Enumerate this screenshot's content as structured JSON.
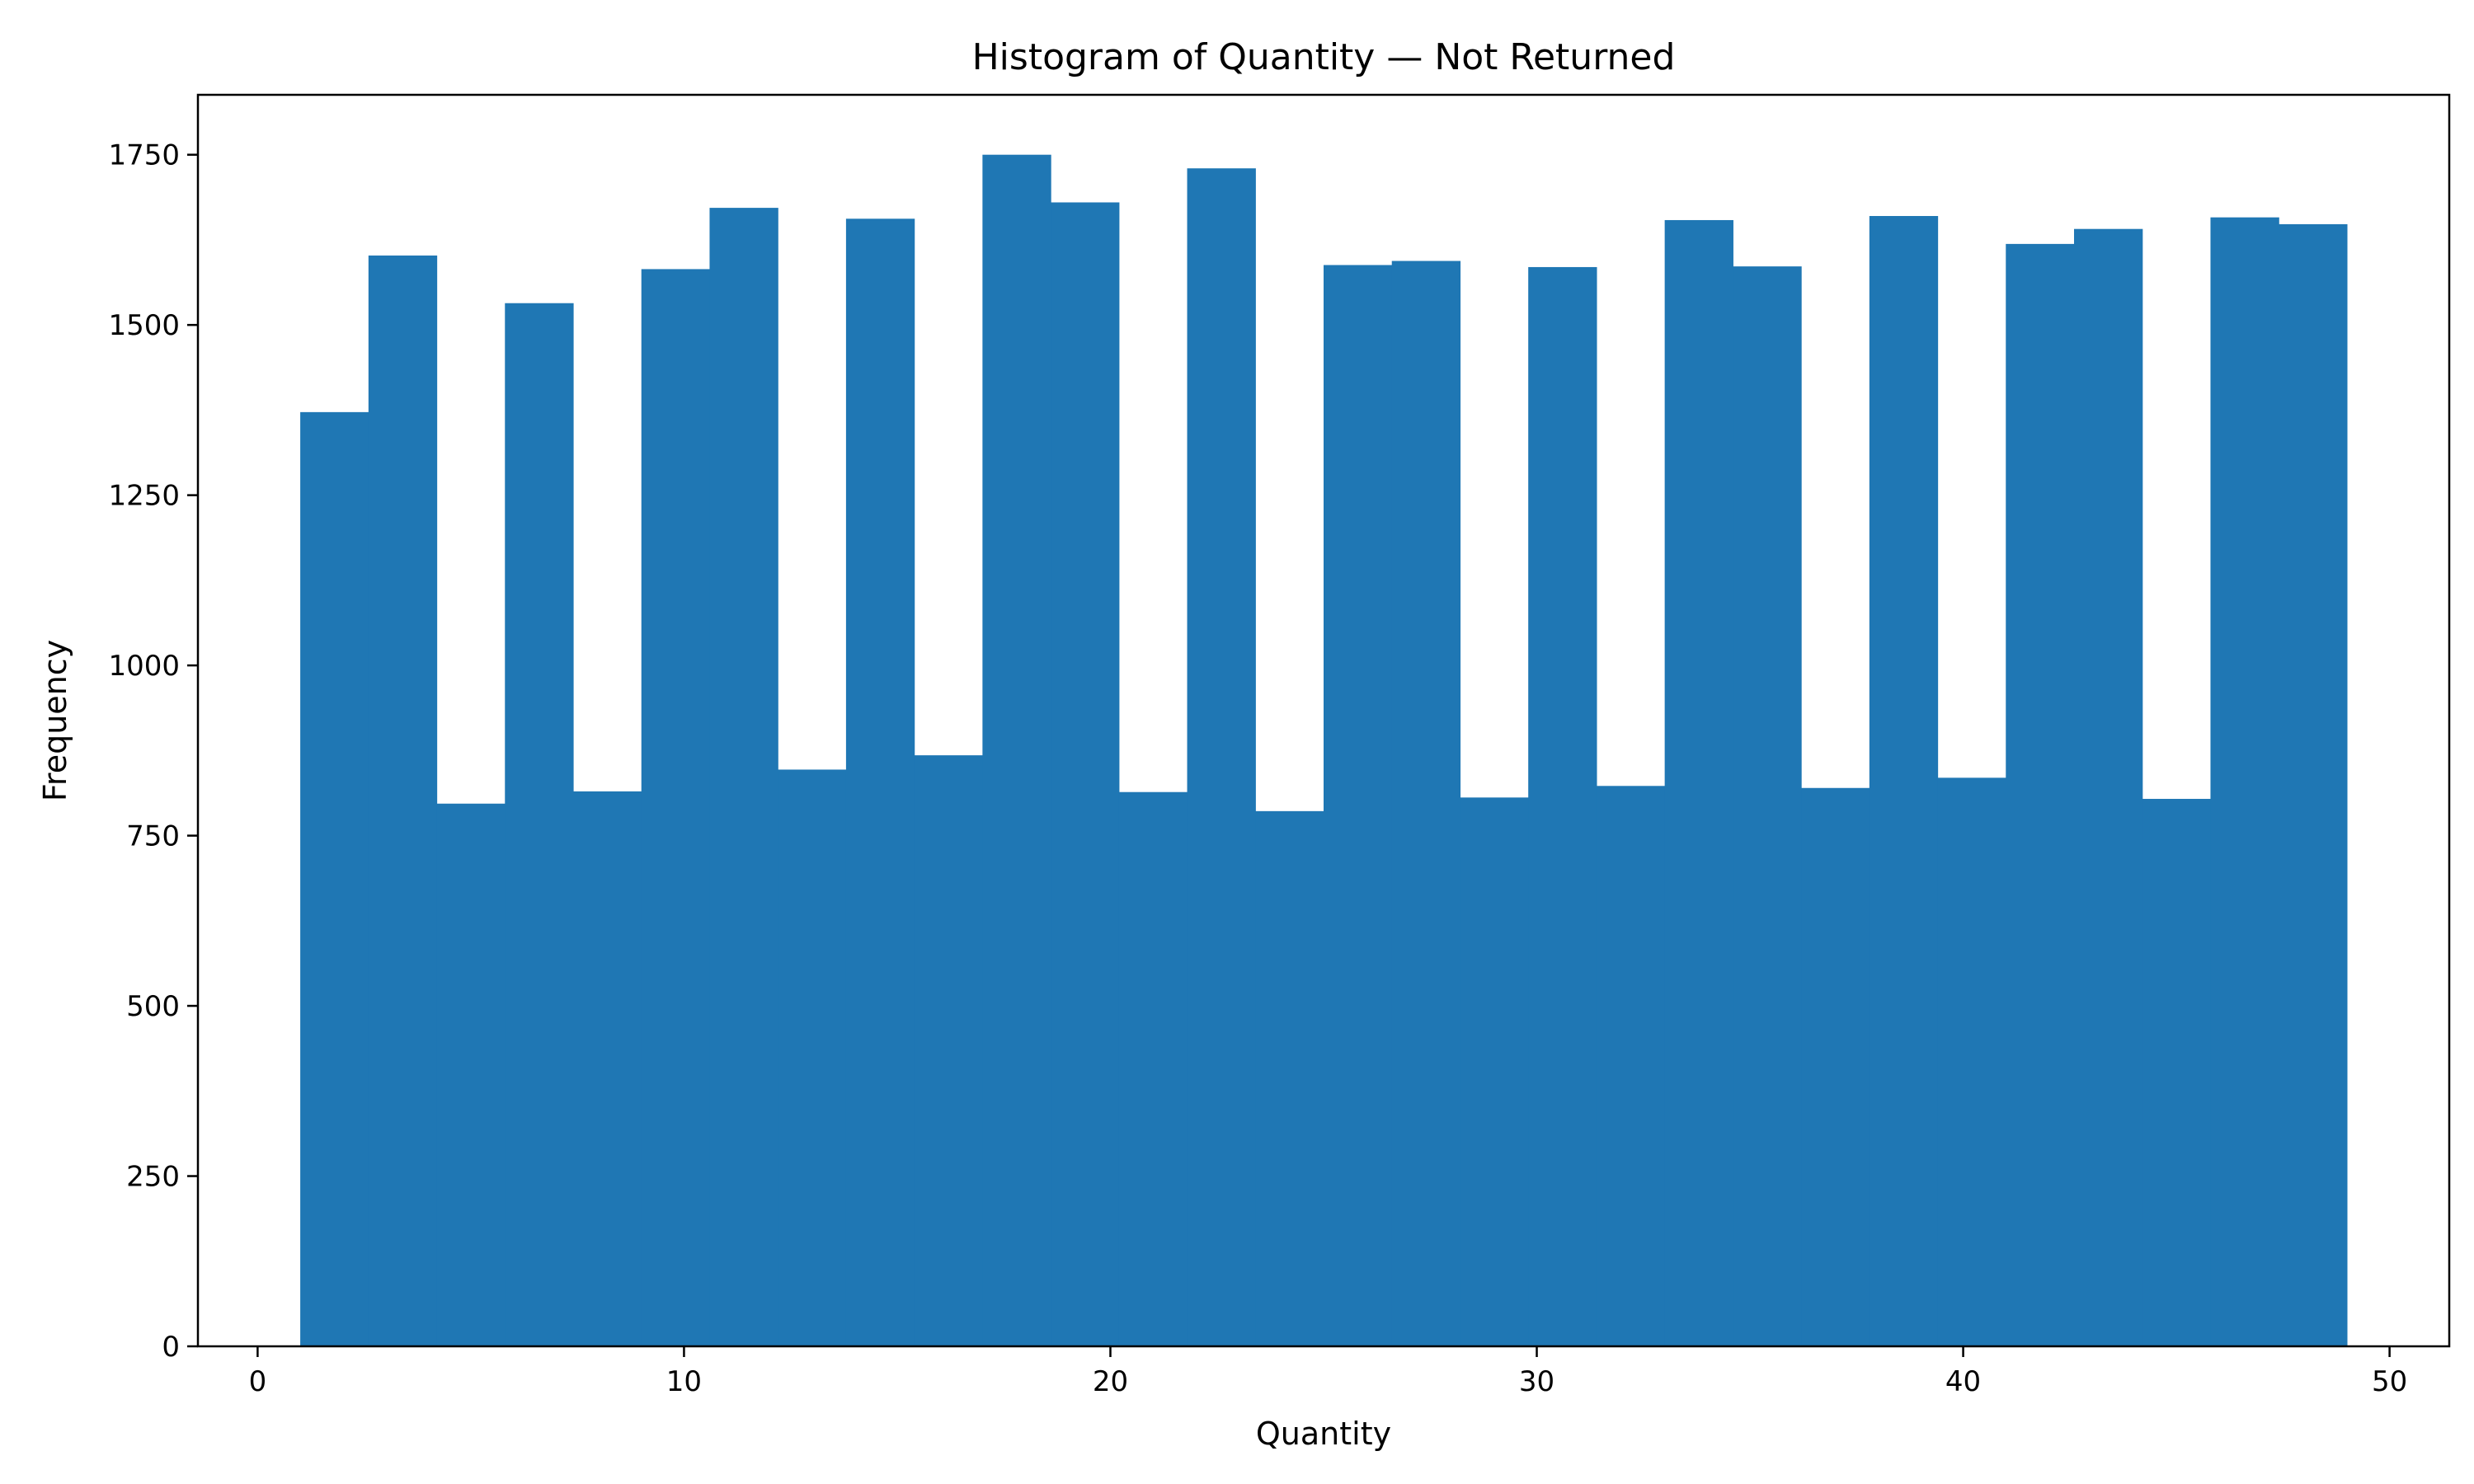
{
  "chart_data": {
    "type": "bar",
    "subtype": "histogram",
    "title": "Histogram of Quantity — Not Returned",
    "xlabel": "Quantity",
    "ylabel": "Frequency",
    "xlim": [
      -1.4,
      51.4
    ],
    "ylim": [
      0,
      1838
    ],
    "bar_color": "#1f77b4",
    "grid": false,
    "legend": "none",
    "xticks": [
      0,
      10,
      20,
      30,
      40,
      50
    ],
    "yticks": [
      0,
      250,
      500,
      750,
      1000,
      1250,
      1500,
      1750
    ],
    "bin_start": 1,
    "bin_end": 49,
    "bin_width": 1.6,
    "values": [
      1372,
      1602,
      797,
      1532,
      815,
      1582,
      1672,
      847,
      1656,
      868,
      1750,
      1680,
      814,
      1730,
      786,
      1588,
      1594,
      806,
      1585,
      823,
      1654,
      1586,
      820,
      1660,
      835,
      1619,
      1641,
      804,
      1658,
      1648
    ]
  }
}
